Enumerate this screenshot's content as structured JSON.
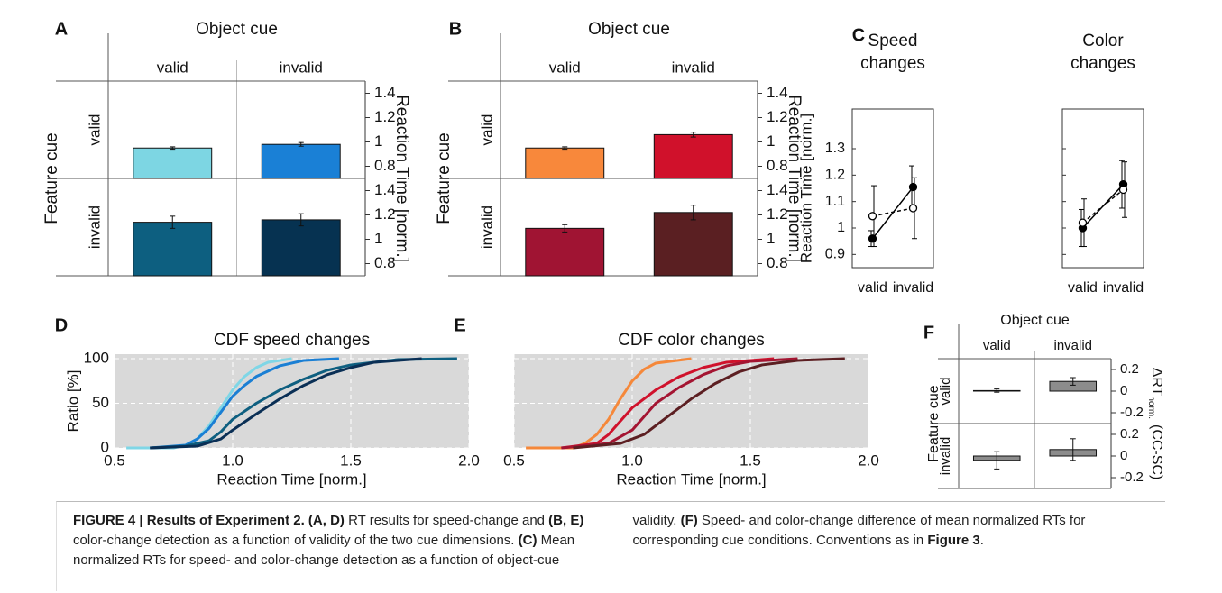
{
  "chart_data": [
    {
      "type": "bar_grid",
      "label": "A",
      "title": "Object cue",
      "categories": [
        "valid",
        "invalid"
      ],
      "row_title": "Feature cue",
      "series": [
        {
          "name": "valid",
          "colors": [
            "#7dd6e3",
            "#1a80d6"
          ],
          "values": [
            0.95,
            0.98
          ],
          "errors": [
            0.01,
            0.015
          ]
        },
        {
          "name": "invalid",
          "colors": [
            "#0d5f80",
            "#063251"
          ],
          "values": [
            1.14,
            1.16
          ],
          "errors": [
            0.05,
            0.05
          ]
        }
      ],
      "ylim": [
        0.7,
        1.5
      ],
      "yticks": [
        0.8,
        1,
        1.2,
        1.4
      ],
      "ylabel": "Reaction Time [norm.]"
    },
    {
      "type": "bar_grid",
      "label": "B",
      "title": "Object cue",
      "categories": [
        "valid",
        "invalid"
      ],
      "row_title": "Feature cue",
      "series": [
        {
          "name": "valid",
          "colors": [
            "#f8883b",
            "#d0112b"
          ],
          "values": [
            0.95,
            1.06
          ],
          "errors": [
            0.01,
            0.02
          ]
        },
        {
          "name": "invalid",
          "colors": [
            "#a01433",
            "#5a1f22"
          ],
          "values": [
            1.09,
            1.22
          ],
          "errors": [
            0.03,
            0.06
          ]
        }
      ],
      "ylim": [
        0.7,
        1.5
      ],
      "yticks": [
        0.8,
        1,
        1.2,
        1.4
      ],
      "ylabel": "Reaction Time [norm.]"
    },
    {
      "type": "line",
      "label": "C",
      "categories": [
        "valid",
        "invalid"
      ],
      "ylabel": "Reaction Time [norm.]",
      "ylim": [
        0.85,
        1.45
      ],
      "yticks": [
        0.9,
        1,
        1.1,
        1.2,
        1.3
      ],
      "panels": [
        {
          "title": "Speed changes",
          "series": [
            {
              "style": "solid",
              "marker": "filled",
              "color": "#000000",
              "values": [
                0.96,
                1.155
              ],
              "errors": [
                0.03,
                0.08
              ]
            },
            {
              "style": "dashed",
              "marker": "open",
              "color": "#000000",
              "values": [
                1.045,
                1.075
              ],
              "errors": [
                0.115,
                0.115
              ]
            }
          ]
        },
        {
          "title": "Color changes",
          "series": [
            {
              "style": "solid",
              "marker": "filled",
              "color": "#000000",
              "values": [
                1.0,
                1.165
              ],
              "errors": [
                0.07,
                0.09
              ]
            },
            {
              "style": "dashed",
              "marker": "open",
              "color": "#000000",
              "values": [
                1.02,
                1.145
              ],
              "errors": [
                0.09,
                0.105
              ]
            }
          ]
        }
      ]
    },
    {
      "type": "cdf",
      "label": "D",
      "title": "CDF speed changes",
      "xlabel": "Reaction Time [norm.]",
      "ylabel": "Ratio [%]",
      "xlim": [
        0.5,
        2.0
      ],
      "xticks": [
        {
          "value": 0.5,
          "label": "0.5"
        },
        {
          "value": 1,
          "label": "1.0"
        },
        1.5,
        {
          "value": 2,
          "label": "2.0"
        }
      ],
      "ylim": [
        0,
        100
      ],
      "yticks": [
        0,
        50,
        100
      ],
      "grid": true,
      "background": "#d9d9d9",
      "series": [
        {
          "color": "#7fd6e6",
          "x": [
            0.55,
            0.75,
            0.8,
            0.85,
            0.9,
            0.95,
            1.0,
            1.05,
            1.1,
            1.15,
            1.25
          ],
          "values": [
            0,
            0,
            3,
            10,
            25,
            45,
            65,
            80,
            90,
            96,
            100
          ]
        },
        {
          "color": "#1a7fd4",
          "x": [
            0.65,
            0.8,
            0.85,
            0.9,
            0.95,
            1.0,
            1.05,
            1.1,
            1.2,
            1.3,
            1.45
          ],
          "values": [
            0,
            3,
            10,
            22,
            40,
            58,
            70,
            80,
            92,
            98,
            100
          ]
        },
        {
          "color": "#0e5f80",
          "x": [
            0.65,
            0.8,
            0.9,
            0.95,
            1.0,
            1.1,
            1.2,
            1.3,
            1.4,
            1.5,
            1.7,
            1.95
          ],
          "values": [
            0,
            2,
            8,
            18,
            32,
            50,
            65,
            77,
            87,
            93,
            99,
            100
          ]
        },
        {
          "color": "#0a2f55",
          "x": [
            0.65,
            0.85,
            0.95,
            1.0,
            1.1,
            1.2,
            1.3,
            1.4,
            1.5,
            1.6,
            1.8
          ],
          "values": [
            0,
            2,
            10,
            20,
            38,
            55,
            70,
            82,
            90,
            96,
            100
          ]
        }
      ]
    },
    {
      "type": "cdf",
      "label": "E",
      "title": "CDF color changes",
      "xlabel": "Reaction Time [norm.]",
      "xlim": [
        0.5,
        2.0
      ],
      "xticks": [
        {
          "value": 0.5,
          "label": "0.5"
        },
        {
          "value": 1,
          "label": "1.0"
        },
        1.5,
        {
          "value": 2,
          "label": "2.0"
        }
      ],
      "ylim": [
        0,
        100
      ],
      "yticks": [
        0,
        50,
        100
      ],
      "ytick_labels": false,
      "grid": true,
      "background": "#d9d9d9",
      "series": [
        {
          "color": "#f5883a",
          "x": [
            0.55,
            0.75,
            0.8,
            0.85,
            0.9,
            0.95,
            1.0,
            1.05,
            1.1,
            1.25
          ],
          "values": [
            0,
            0,
            5,
            15,
            32,
            55,
            75,
            88,
            95,
            100
          ]
        },
        {
          "color": "#d0122c",
          "x": [
            0.7,
            0.85,
            0.9,
            0.95,
            1.0,
            1.05,
            1.1,
            1.2,
            1.3,
            1.4,
            1.6
          ],
          "values": [
            0,
            5,
            15,
            30,
            45,
            55,
            65,
            80,
            90,
            96,
            100
          ]
        },
        {
          "color": "#a41532",
          "x": [
            0.7,
            0.9,
            1.0,
            1.05,
            1.1,
            1.2,
            1.3,
            1.4,
            1.5,
            1.7
          ],
          "values": [
            0,
            5,
            20,
            35,
            50,
            68,
            82,
            92,
            97,
            100
          ]
        },
        {
          "color": "#5c1f22",
          "x": [
            0.75,
            0.95,
            1.05,
            1.15,
            1.25,
            1.35,
            1.45,
            1.55,
            1.7,
            1.9
          ],
          "values": [
            0,
            5,
            15,
            35,
            55,
            72,
            85,
            93,
            98,
            100
          ]
        }
      ]
    },
    {
      "type": "bar_grid",
      "label": "F",
      "title": "Object cue",
      "categories": [
        "valid",
        "invalid"
      ],
      "row_title": "Feature cue",
      "series": [
        {
          "name": "valid",
          "colors": [
            "#8c8c8c",
            "#8c8c8c"
          ],
          "values": [
            0.005,
            0.09
          ],
          "errors": [
            0.015,
            0.035
          ]
        },
        {
          "name": "invalid",
          "colors": [
            "#8c8c8c",
            "#8c8c8c"
          ],
          "values": [
            -0.04,
            0.06
          ],
          "errors": [
            0.08,
            0.1
          ]
        }
      ],
      "ylim": [
        -0.3,
        0.3
      ],
      "yticks": [
        -0.2,
        0,
        0.2
      ],
      "ylabel": "ΔRT",
      "ylabel_sub": "norm.",
      "ylabel_suffix": "(CC-SC)"
    }
  ],
  "caption": [
    {
      "text": "FIGURE 4 | Results of Experiment 2. (A, D)",
      "bold": true
    },
    {
      "text": " RT results for speed-change and "
    },
    {
      "text": "(B, E)",
      "bold": true
    },
    {
      "text": " color-change detection as a function of validity of the two cue dimensions. "
    },
    {
      "text": "(C)",
      "bold": true
    },
    {
      "text": " Mean normalized RTs for speed- and color-change detection as a function of object-cue validity. "
    },
    {
      "text": "(F)",
      "bold": true
    },
    {
      "text": " Speed- and color-change difference of mean normalized RTs for corresponding cue conditions. Conventions as in "
    },
    {
      "text": "Figure 3",
      "bold": true
    },
    {
      "text": "."
    }
  ]
}
